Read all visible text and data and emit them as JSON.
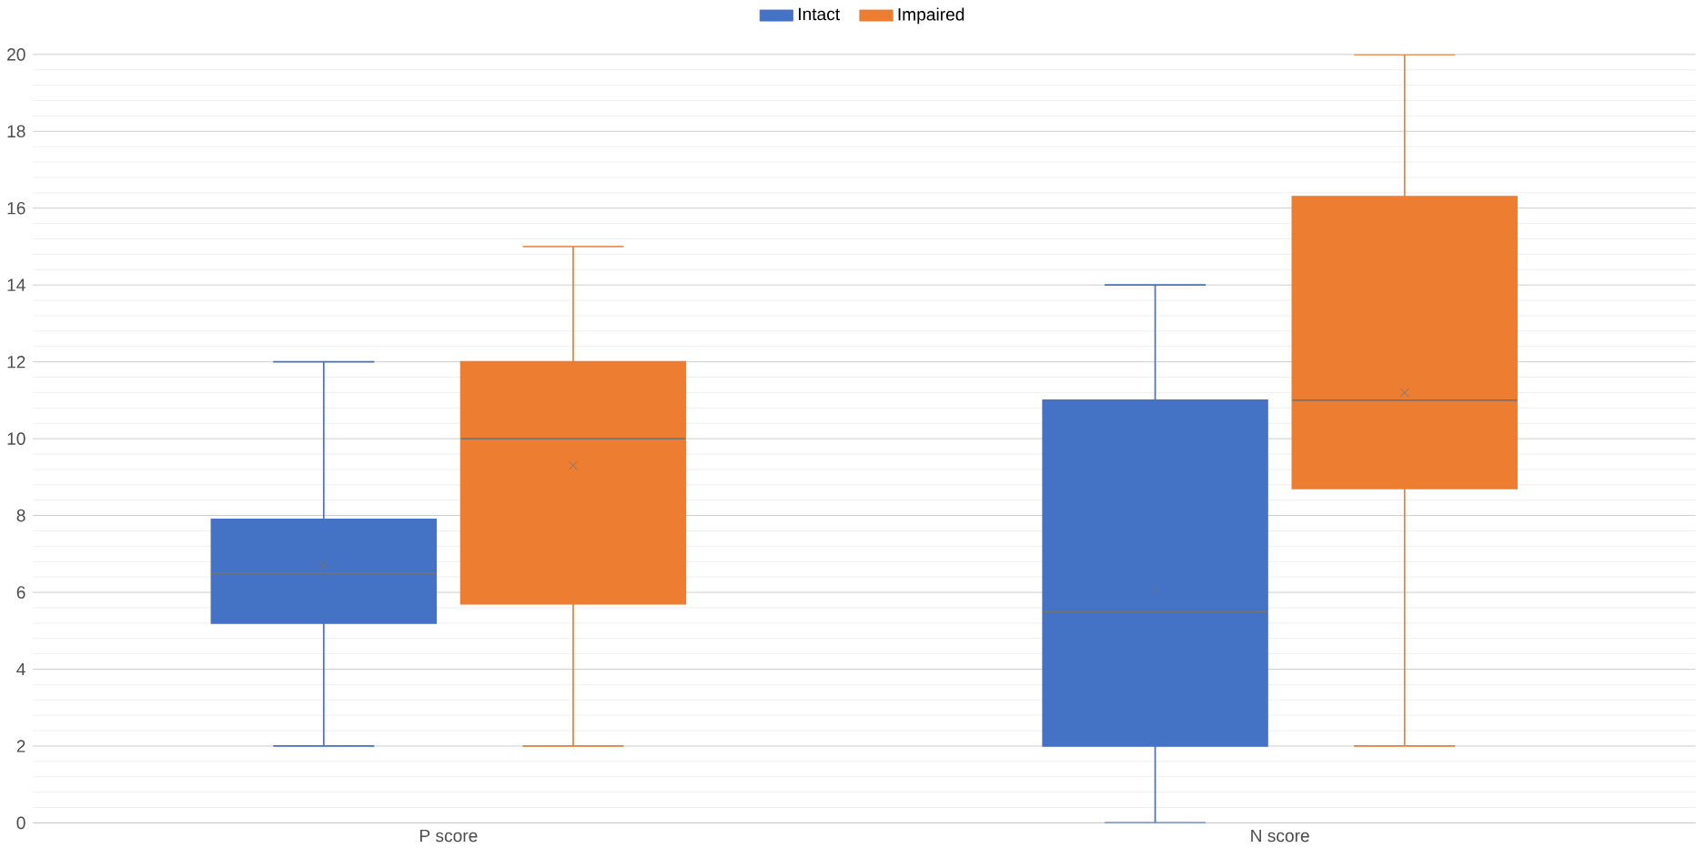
{
  "chart_data": {
    "type": "box",
    "categories": [
      "P score",
      "N score"
    ],
    "series": [
      {
        "name": "Intact",
        "color": "#4472c4",
        "boxes": [
          {
            "low": 2,
            "q1": 5.2,
            "median": 6.5,
            "q3": 7.9,
            "high": 12,
            "mean": 6.7
          },
          {
            "low": 0,
            "q1": 2,
            "median": 5.5,
            "q3": 11,
            "high": 14,
            "mean": 6.1
          }
        ]
      },
      {
        "name": "Impaired",
        "color": "#ed7d31",
        "boxes": [
          {
            "low": 2,
            "q1": 5.7,
            "median": 10,
            "q3": 12,
            "high": 15,
            "mean": 9.3
          },
          {
            "low": 2,
            "q1": 8.7,
            "median": 11,
            "q3": 16.3,
            "high": 20,
            "mean": 11.2
          }
        ]
      }
    ],
    "ylim": [
      0,
      20
    ],
    "yticks": [
      0,
      2,
      4,
      6,
      8,
      10,
      12,
      14,
      16,
      18,
      20
    ],
    "grid": "y",
    "legend": "top"
  }
}
